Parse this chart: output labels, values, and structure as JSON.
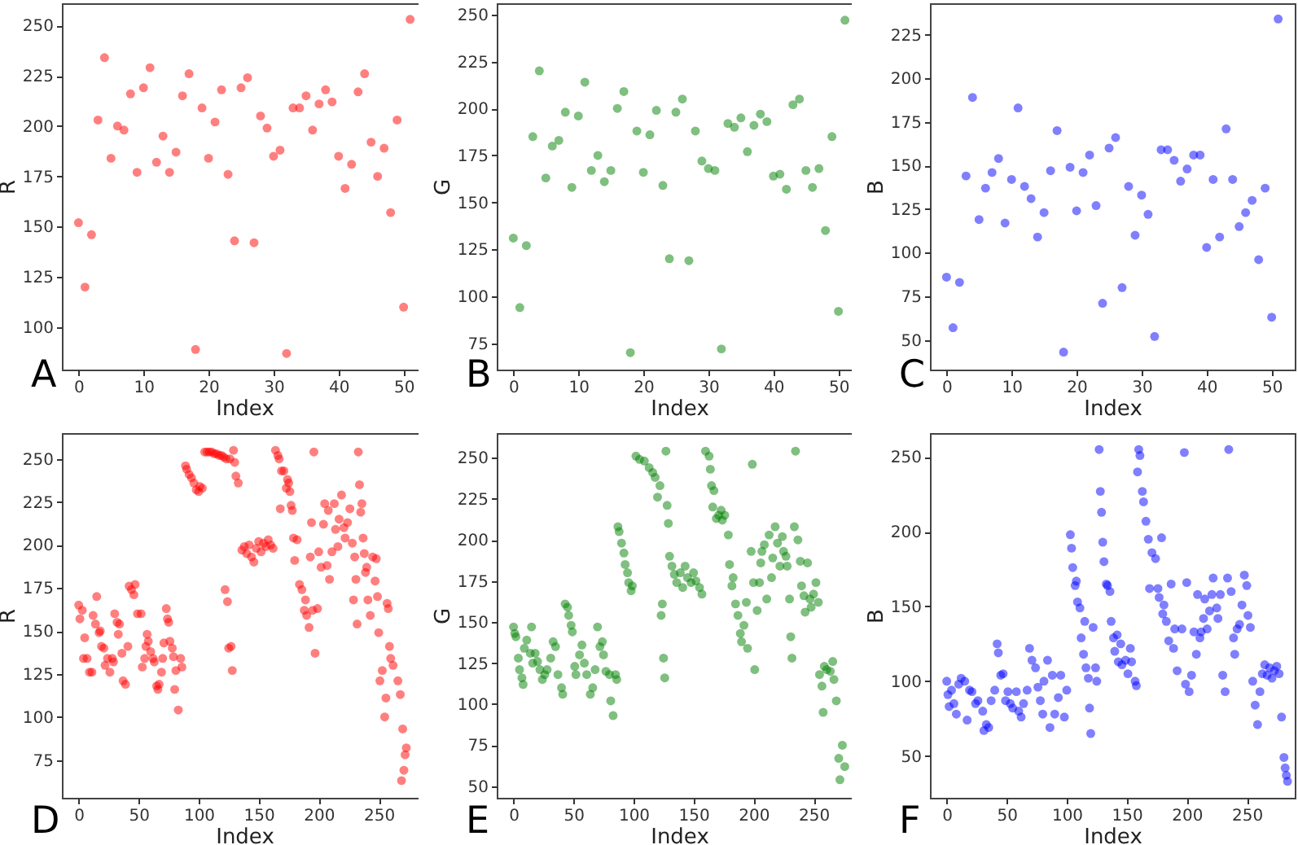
{
  "chart_data": [
    {
      "type": "scatter",
      "title": "A",
      "xlabel": "Index",
      "ylabel": "R",
      "color": "#ff0000",
      "marker": "circle",
      "xlim": [
        -2.55,
        53.55
      ],
      "ylim": [
        79,
        261
      ],
      "xticks": [
        0,
        10,
        20,
        30,
        40,
        50
      ],
      "yticks": [
        100,
        125,
        150,
        175,
        200,
        225,
        250
      ],
      "x": [
        0,
        1,
        2,
        3,
        4,
        5,
        6,
        7,
        8,
        9,
        10,
        11,
        12,
        13,
        14,
        15,
        16,
        17,
        18,
        19,
        20,
        21,
        22,
        23,
        24,
        25,
        26,
        27,
        28,
        29,
        30,
        31,
        32,
        33,
        34,
        35,
        36,
        37,
        38,
        39,
        40,
        41,
        42,
        43,
        44,
        45,
        46,
        47,
        48,
        49,
        50,
        51
      ],
      "values": [
        152,
        120,
        146,
        203,
        234,
        184,
        200,
        198,
        216,
        177,
        219,
        229,
        182,
        195,
        177,
        187,
        215,
        226,
        89,
        209,
        184,
        202,
        218,
        176,
        143,
        219,
        224,
        142,
        205,
        199,
        185,
        188,
        87,
        209,
        209,
        215,
        198,
        211,
        218,
        212,
        185,
        169,
        181,
        217,
        226,
        192,
        175,
        189,
        157,
        203,
        110,
        253
      ]
    },
    {
      "type": "scatter",
      "title": "B",
      "xlabel": "Index",
      "ylabel": "G",
      "color": "#008000",
      "marker": "circle",
      "xlim": [
        -2.55,
        53.55
      ],
      "ylim": [
        61,
        256
      ],
      "xticks": [
        0,
        10,
        20,
        30,
        40,
        50
      ],
      "yticks": [
        75,
        100,
        125,
        150,
        175,
        200,
        225,
        250
      ],
      "x": [
        0,
        1,
        2,
        3,
        4,
        5,
        6,
        7,
        8,
        9,
        10,
        11,
        12,
        13,
        14,
        15,
        16,
        17,
        18,
        19,
        20,
        21,
        22,
        23,
        24,
        25,
        26,
        27,
        28,
        29,
        30,
        31,
        32,
        33,
        34,
        35,
        36,
        37,
        38,
        39,
        40,
        41,
        42,
        43,
        44,
        45,
        46,
        47,
        48,
        49,
        50,
        51
      ],
      "values": [
        131,
        94,
        127,
        185,
        220,
        163,
        180,
        183,
        198,
        158,
        196,
        214,
        167,
        175,
        161,
        167,
        200,
        209,
        70,
        188,
        166,
        186,
        199,
        159,
        120,
        198,
        205,
        119,
        188,
        172,
        168,
        167,
        72,
        192,
        190,
        195,
        177,
        191,
        197,
        193,
        164,
        165,
        157,
        202,
        205,
        167,
        158,
        168,
        135,
        185,
        92,
        247
      ]
    },
    {
      "type": "scatter",
      "title": "C",
      "xlabel": "Index",
      "ylabel": "B",
      "color": "#0000ff",
      "marker": "circle",
      "xlim": [
        -2.55,
        53.55
      ],
      "ylim": [
        33,
        243
      ],
      "xticks": [
        0,
        10,
        20,
        30,
        40,
        50
      ],
      "yticks": [
        50,
        75,
        100,
        125,
        150,
        175,
        200,
        225
      ],
      "x": [
        0,
        1,
        2,
        3,
        4,
        5,
        6,
        7,
        8,
        9,
        10,
        11,
        12,
        13,
        14,
        15,
        16,
        17,
        18,
        19,
        20,
        21,
        22,
        23,
        24,
        25,
        26,
        27,
        28,
        29,
        30,
        31,
        32,
        33,
        34,
        35,
        36,
        37,
        38,
        39,
        40,
        41,
        42,
        43,
        44,
        45,
        46,
        47,
        48,
        49,
        50,
        51
      ],
      "values": [
        86,
        57,
        83,
        144,
        189,
        119,
        137,
        146,
        154,
        117,
        142,
        183,
        138,
        131,
        109,
        123,
        147,
        170,
        43,
        149,
        124,
        146,
        156,
        127,
        71,
        160,
        166,
        80,
        138,
        110,
        133,
        122,
        52,
        159,
        159,
        153,
        141,
        148,
        156,
        156,
        103,
        142,
        109,
        171,
        142,
        115,
        123,
        130,
        96,
        137,
        63,
        234
      ]
    },
    {
      "type": "scatter",
      "title": "D",
      "xlabel": "Index",
      "ylabel": "R",
      "color": "#ff0000",
      "marker": "circle",
      "xlim": [
        -14,
        290
      ],
      "ylim": [
        53,
        265
      ],
      "xticks": [
        0,
        50,
        100,
        150,
        200,
        250
      ],
      "yticks": [
        75,
        100,
        125,
        150,
        175,
        200,
        225,
        250
      ],
      "x": [
        0,
        1,
        3,
        4,
        5,
        7,
        9,
        11,
        12,
        14,
        15,
        17,
        18,
        19,
        21,
        22,
        24,
        26,
        28,
        29,
        30,
        32,
        33,
        34,
        36,
        37,
        39,
        41,
        42,
        44,
        46,
        47,
        49,
        52,
        53,
        55,
        56,
        57,
        58,
        60,
        62,
        63,
        65,
        66,
        67,
        69,
        70,
        71,
        73,
        74,
        75,
        76,
        78,
        79,
        80,
        81,
        83,
        85,
        86,
        89,
        90,
        92,
        94,
        96,
        98,
        100,
        101,
        103,
        105,
        107,
        109,
        111,
        113,
        115,
        117,
        119,
        121,
        122,
        123,
        124,
        125,
        126,
        127,
        128,
        129,
        130,
        131,
        133,
        136,
        138,
        140,
        142,
        144,
        146,
        148,
        150,
        152,
        154,
        156,
        158,
        160,
        162,
        164,
        166,
        167,
        168,
        169,
        171,
        173,
        174,
        175,
        176,
        177,
        178,
        179,
        180,
        182,
        184,
        186,
        188,
        189,
        190,
        192,
        193,
        194,
        195,
        196,
        197,
        199,
        200,
        202,
        204,
        205,
        207,
        208,
        209,
        211,
        213,
        214,
        216,
        217,
        219,
        221,
        222,
        224,
        226,
        228,
        229,
        230,
        231,
        232,
        233,
        234,
        235,
        236,
        237,
        238,
        239,
        240,
        241,
        243,
        245,
        247,
        248,
        249,
        250,
        251,
        253,
        255,
        256,
        257,
        258,
        259,
        260,
        262,
        266,
        268,
        269,
        270,
        271,
        272,
        273
      ],
      "values": [
        165,
        157,
        162,
        134,
        146,
        134,
        126,
        126,
        159,
        154,
        170,
        149,
        150,
        141,
        140,
        130,
        134,
        126,
        134,
        132,
        160,
        155,
        148,
        154,
        137,
        121,
        119,
        141,
        176,
        174,
        171,
        177,
        160,
        160,
        129,
        134,
        141,
        148,
        144,
        138,
        134,
        132,
        118,
        116,
        119,
        126,
        134,
        143,
        163,
        157,
        155,
        144,
        140,
        135,
        116,
        127,
        104,
        134,
        129,
        246,
        244,
        241,
        239,
        236,
        232,
        231,
        234,
        233,
        254,
        254,
        254,
        254,
        253,
        253,
        252,
        252,
        251,
        174,
        250,
        167,
        140,
        250,
        141,
        127,
        255,
        248,
        240,
        236,
        197,
        199,
        195,
        200,
        193,
        190,
        198,
        202,
        196,
        201,
        199,
        203,
        200,
        198,
        255,
        252,
        250,
        221,
        243,
        243,
        233,
        238,
        236,
        231,
        223,
        220,
        204,
        191,
        203,
        177,
        174,
        162,
        168,
        159,
        152,
        193,
        213,
        162,
        254,
        137,
        163,
        196,
        187,
        212,
        224,
        188,
        220,
        180,
        196,
        224,
        209,
        199,
        215,
        229,
        210,
        204,
        213,
        221,
        201,
        168,
        193,
        180,
        154,
        254,
        235,
        219,
        224,
        204,
        195,
        184,
        187,
        168,
        159,
        193,
        179,
        192,
        170,
        149,
        121,
        127,
        100,
        111,
        166,
        163,
        141,
        134,
        130,
        121,
        113,
        63,
        93,
        69,
        78,
        82
      ]
    },
    {
      "type": "scatter",
      "title": "E",
      "xlabel": "Index",
      "ylabel": "G",
      "color": "#008000",
      "marker": "circle",
      "xlim": [
        -14,
        290
      ],
      "ylim": [
        43,
        265
      ],
      "xticks": [
        0,
        50,
        100,
        150,
        200,
        250
      ],
      "yticks": [
        50,
        75,
        100,
        125,
        150,
        175,
        200,
        225,
        250
      ],
      "x": [
        0,
        1,
        2,
        4,
        5,
        7,
        8,
        9,
        11,
        14,
        15,
        16,
        18,
        20,
        22,
        24,
        26,
        28,
        31,
        33,
        35,
        37,
        40,
        41,
        43,
        45,
        46,
        48,
        49,
        51,
        52,
        55,
        57,
        59,
        61,
        64,
        66,
        68,
        70,
        72,
        74,
        75,
        77,
        80,
        81,
        83,
        85,
        86,
        87,
        88,
        90,
        92,
        93,
        95,
        96,
        98,
        99,
        102,
        105,
        109,
        113,
        116,
        118,
        120,
        122,
        123,
        124,
        125,
        126,
        127,
        128,
        129,
        130,
        132,
        134,
        136,
        139,
        141,
        143,
        145,
        148,
        150,
        152,
        155,
        157,
        160,
        163,
        164,
        165,
        166,
        167,
        169,
        171,
        173,
        174,
        176,
        179,
        180,
        182,
        183,
        185,
        187,
        189,
        190,
        192,
        194,
        195,
        198,
        199,
        200,
        201,
        203,
        205,
        206,
        207,
        209,
        211,
        213,
        215,
        216,
        218,
        220,
        222,
        224,
        225,
        227,
        228,
        230,
        231,
        232,
        234,
        235,
        237,
        239,
        240,
        242,
        243,
        245,
        247,
        248,
        250,
        252,
        254,
        255,
        257,
        258,
        259,
        261,
        264,
        266,
        267,
        269,
        271,
        272,
        274,
        276
      ],
      "values": [
        147,
        143,
        141,
        128,
        121,
        116,
        112,
        134,
        139,
        131,
        147,
        125,
        131,
        126,
        121,
        115,
        118,
        121,
        128,
        138,
        135,
        118,
        110,
        106,
        161,
        159,
        154,
        148,
        144,
        123,
        118,
        130,
        136,
        125,
        118,
        106,
        110,
        121,
        147,
        135,
        138,
        130,
        120,
        118,
        102,
        93,
        118,
        115,
        208,
        205,
        198,
        192,
        185,
        180,
        174,
        169,
        172,
        251,
        249,
        248,
        244,
        241,
        238,
        226,
        233,
        154,
        161,
        128,
        116,
        254,
        221,
        210,
        190,
        184,
        179,
        174,
        180,
        171,
        184,
        177,
        174,
        180,
        175,
        171,
        167,
        254,
        251,
        243,
        233,
        220,
        230,
        213,
        215,
        218,
        212,
        215,
        203,
        185,
        172,
        177,
        161,
        154,
        143,
        138,
        148,
        162,
        134,
        193,
        246,
        174,
        121,
        157,
        174,
        186,
        193,
        197,
        164,
        203,
        177,
        189,
        208,
        198,
        184,
        202,
        193,
        190,
        184,
        164,
        141,
        128,
        208,
        254,
        200,
        187,
        172,
        166,
        156,
        186,
        164,
        159,
        167,
        174,
        162,
        118,
        111,
        95,
        123,
        121,
        120,
        126,
        115,
        102,
        67,
        54,
        75,
        62
      ]
    },
    {
      "type": "scatter",
      "title": "F",
      "xlabel": "Index",
      "ylabel": "B",
      "color": "#0000ff",
      "marker": "circle",
      "xlim": [
        -14,
        290
      ],
      "ylim": [
        22,
        266
      ],
      "xticks": [
        0,
        50,
        100,
        150,
        200,
        250
      ],
      "yticks": [
        50,
        100,
        150,
        200,
        250
      ],
      "x": [
        0,
        1,
        2,
        4,
        6,
        8,
        10,
        12,
        15,
        17,
        19,
        21,
        24,
        26,
        30,
        31,
        33,
        35,
        37,
        40,
        42,
        43,
        45,
        47,
        49,
        51,
        53,
        55,
        58,
        60,
        62,
        64,
        67,
        69,
        71,
        74,
        76,
        78,
        80,
        81,
        84,
        86,
        88,
        90,
        93,
        95,
        98,
        100,
        103,
        104,
        105,
        107,
        108,
        109,
        111,
        112,
        114,
        115,
        116,
        118,
        119,
        120,
        122,
        124,
        125,
        127,
        128,
        129,
        130,
        131,
        133,
        134,
        136,
        137,
        139,
        140,
        142,
        143,
        145,
        146,
        149,
        151,
        153,
        154,
        157,
        158,
        159,
        160,
        161,
        163,
        164,
        166,
        168,
        169,
        171,
        174,
        176,
        177,
        179,
        180,
        181,
        183,
        185,
        187,
        189,
        190,
        192,
        196,
        198,
        199,
        200,
        202,
        204,
        206,
        208,
        209,
        211,
        212,
        214,
        215,
        217,
        219,
        221,
        222,
        225,
        226,
        228,
        230,
        232,
        234,
        235,
        237,
        239,
        240,
        242,
        244,
        246,
        248,
        250,
        251,
        253,
        255,
        257,
        259,
        261,
        263,
        265,
        267,
        269,
        271,
        273,
        275,
        277,
        279,
        281,
        282,
        283,
        284
      ],
      "values": [
        100,
        91,
        83,
        94,
        85,
        78,
        98,
        102,
        100,
        74,
        94,
        93,
        85,
        87,
        80,
        67,
        71,
        69,
        87,
        94,
        125,
        119,
        104,
        105,
        87,
        93,
        85,
        82,
        93,
        80,
        76,
        85,
        94,
        122,
        114,
        109,
        96,
        87,
        78,
        100,
        114,
        69,
        104,
        78,
        89,
        104,
        76,
        94,
        198,
        189,
        176,
        164,
        167,
        153,
        149,
        129,
        118,
        140,
        109,
        102,
        82,
        65,
        136,
        109,
        100,
        255,
        227,
        213,
        193,
        180,
        165,
        164,
        160,
        140,
        129,
        120,
        131,
        113,
        125,
        111,
        114,
        105,
        122,
        113,
        100,
        97,
        240,
        255,
        251,
        227,
        220,
        207,
        195,
        162,
        186,
        182,
        162,
        156,
        196,
        145,
        151,
        140,
        127,
        165,
        122,
        135,
        107,
        135,
        253,
        98,
        166,
        93,
        104,
        133,
        118,
        158,
        129,
        133,
        142,
        155,
        135,
        147,
        158,
        169,
        149,
        142,
        158,
        104,
        93,
        169,
        255,
        160,
        129,
        118,
        135,
        138,
        151,
        171,
        164,
        144,
        136,
        100,
        84,
        71,
        93,
        105,
        111,
        104,
        109,
        102,
        107,
        110,
        105,
        76,
        49,
        42,
        37,
        33
      ]
    }
  ]
}
